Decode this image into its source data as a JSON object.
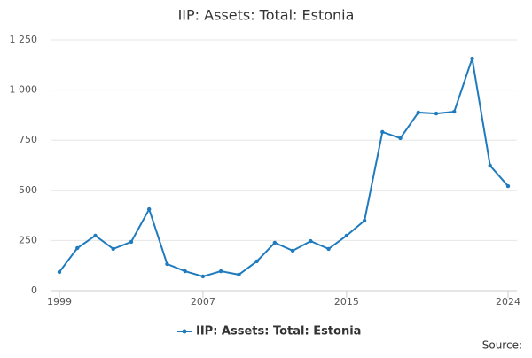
{
  "chart_data": {
    "type": "line",
    "title": "IIP: Assets: Total: Estonia",
    "x": [
      1999,
      2000,
      2001,
      2002,
      2003,
      2004,
      2005,
      2006,
      2007,
      2008,
      2009,
      2010,
      2011,
      2012,
      2013,
      2014,
      2015,
      2016,
      2017,
      2018,
      2019,
      2020,
      2021,
      2022,
      2023,
      2024
    ],
    "series": [
      {
        "name": "IIP: Assets: Total: Estonia",
        "color": "#1f7bbd",
        "values": [
          93,
          212,
          274,
          208,
          243,
          406,
          133,
          97,
          71,
          97,
          80,
          146,
          239,
          199,
          247,
          208,
          274,
          349,
          791,
          760,
          888,
          883,
          892,
          1157,
          623,
          521
        ]
      }
    ],
    "xlim": [
      1999,
      2024
    ],
    "xticks": [
      1999,
      2007,
      2015,
      2024
    ],
    "ylim": [
      0,
      1250
    ],
    "yticks": [
      0,
      250,
      500,
      750,
      {
        "value": 1000,
        "label": "1 000"
      },
      {
        "value": 1250,
        "label": "1 250"
      }
    ],
    "grid": true,
    "legend": "bottom",
    "source": "Source:"
  }
}
